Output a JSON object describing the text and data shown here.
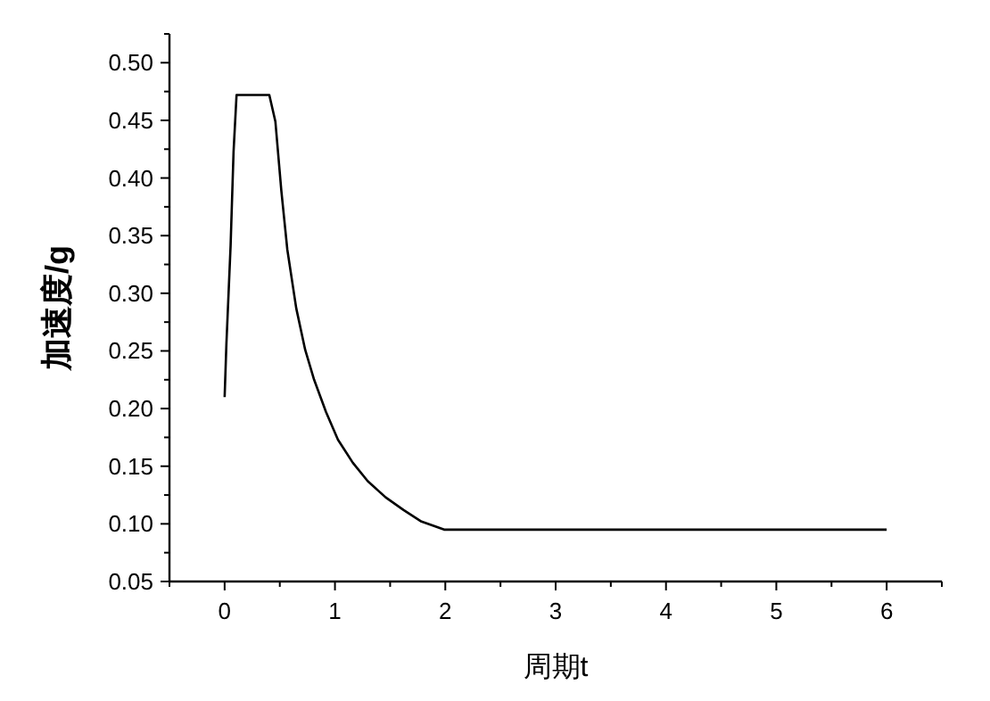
{
  "chart_data": {
    "type": "line",
    "xlabel": "周期t",
    "ylabel": "加速度/g",
    "x": [
      0,
      0.016,
      0.054,
      0.081,
      0.108,
      0.405,
      0.46,
      0.514,
      0.568,
      0.649,
      0.73,
      0.811,
      0.919,
      1.027,
      1.162,
      1.297,
      1.459,
      1.622,
      1.784,
      1.989,
      6
    ],
    "series": [
      {
        "color": "#000000",
        "values": [
          0.21,
          0.256,
          0.341,
          0.423,
          0.472,
          0.472,
          0.449,
          0.389,
          0.338,
          0.287,
          0.251,
          0.225,
          0.197,
          0.173,
          0.153,
          0.137,
          0.123,
          0.112,
          0.102,
          0.095,
          0.095
        ]
      }
    ],
    "xlim": [
      -0.5,
      6.5
    ],
    "ylim": [
      0.05,
      0.525
    ],
    "xticks": [
      0,
      1,
      2,
      3,
      4,
      5,
      6,
      {
        "value": -0.5,
        "label": null
      },
      {
        "value": 0.5,
        "label": null
      },
      {
        "value": 1.5,
        "label": null
      },
      {
        "value": 2.5,
        "label": null
      },
      {
        "value": 3.5,
        "label": null
      },
      {
        "value": 4.5,
        "label": null
      },
      {
        "value": 5.5,
        "label": null
      },
      {
        "value": 6.5,
        "label": null
      }
    ],
    "yticks": [
      {
        "value": 0.05,
        "label": "0.05"
      },
      {
        "value": 0.1,
        "label": "0.10"
      },
      {
        "value": 0.15,
        "label": "0.15"
      },
      {
        "value": 0.2,
        "label": "0.20"
      },
      {
        "value": 0.25,
        "label": "0.25"
      },
      {
        "value": 0.3,
        "label": "0.30"
      },
      {
        "value": 0.35,
        "label": "0.35"
      },
      {
        "value": 0.4,
        "label": "0.40"
      },
      {
        "value": 0.45,
        "label": "0.45"
      },
      {
        "value": 0.5,
        "label": "0.50"
      },
      {
        "value": 0.075,
        "label": null
      },
      {
        "value": 0.125,
        "label": null
      },
      {
        "value": 0.175,
        "label": null
      },
      {
        "value": 0.225,
        "label": null
      },
      {
        "value": 0.275,
        "label": null
      },
      {
        "value": 0.325,
        "label": null
      },
      {
        "value": 0.375,
        "label": null
      },
      {
        "value": 0.425,
        "label": null
      },
      {
        "value": 0.475,
        "label": null
      },
      {
        "value": 0.525,
        "label": null
      }
    ],
    "grid": false,
    "marker": "none",
    "line_style": "solid"
  }
}
